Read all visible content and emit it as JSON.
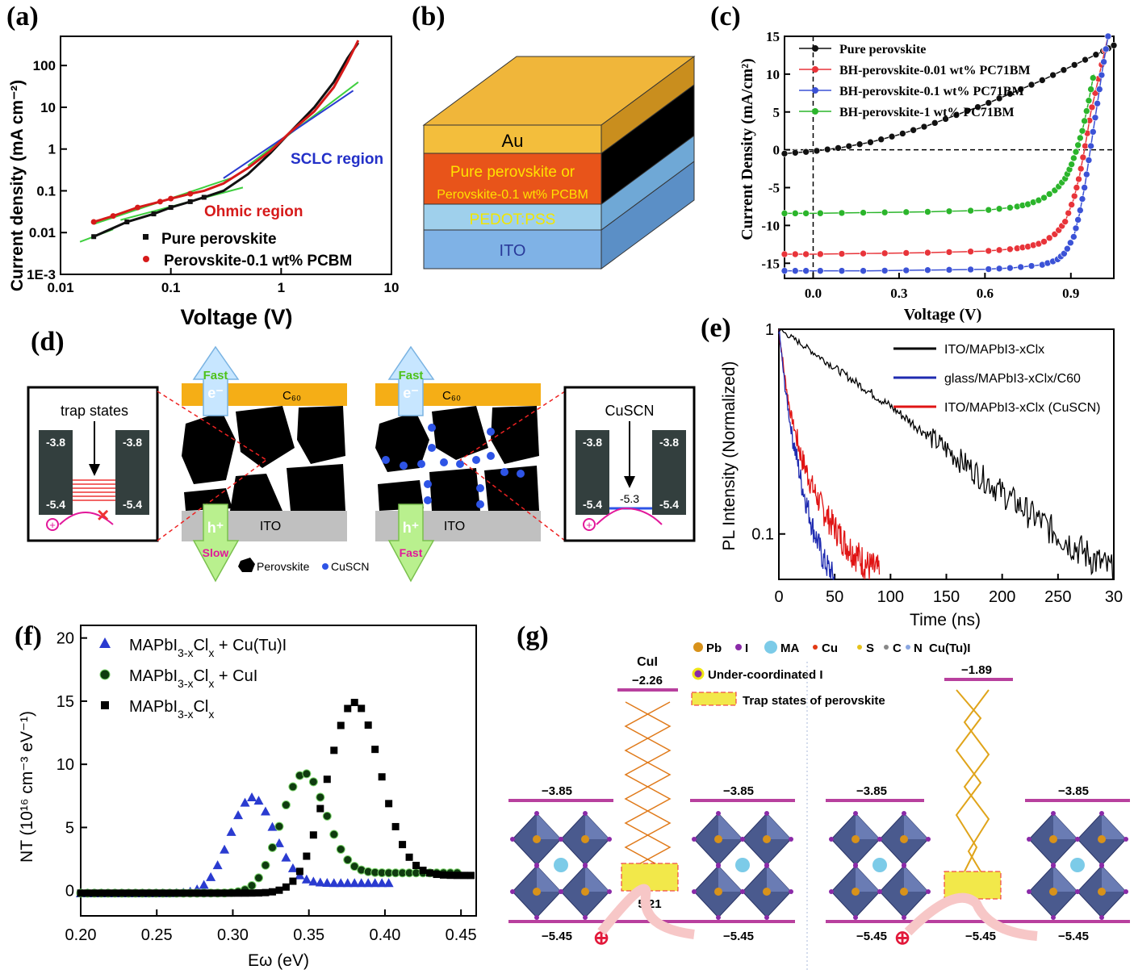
{
  "panel_labels": {
    "a": "(a)",
    "b": "(b)",
    "c": "(c)",
    "d": "(d)",
    "e": "(e)",
    "f": "(f)",
    "g": "(g)"
  },
  "chart_data": [
    {
      "id": "a",
      "type": "line",
      "x_scale": "log",
      "y_scale": "log",
      "xlabel": "Voltage (V)",
      "ylabel": "Current density (mA cm⁻²)",
      "xlim": [
        0.01,
        10
      ],
      "ylim": [
        0.001,
        500
      ],
      "x_ticks": [
        "0.01",
        "0.1",
        "1",
        "10"
      ],
      "y_ticks": [
        "1E-3",
        "0.01",
        "0.1",
        "1",
        "10",
        "100"
      ],
      "annotations": [
        "SCLC region",
        "Ohmic region",
        "Pure perovskite",
        "Perovskite-0.1 wt% PCBM"
      ],
      "series": [
        {
          "name": "Pure perovskite",
          "color": "#111111",
          "x": [
            0.02,
            0.04,
            0.07,
            0.1,
            0.15,
            0.2,
            0.3,
            0.5,
            0.8,
            1.2,
            2.0,
            3.0,
            4.0,
            5.0
          ],
          "y": [
            0.008,
            0.018,
            0.028,
            0.04,
            0.055,
            0.07,
            0.1,
            0.25,
            0.8,
            2.5,
            10,
            40,
            150,
            350
          ]
        },
        {
          "name": "Perovskite-0.1 wt% PCBM",
          "color": "#d61a1a",
          "x": [
            0.02,
            0.03,
            0.05,
            0.08,
            0.1,
            0.15,
            0.2,
            0.3,
            0.5,
            0.8,
            1.2,
            2.0,
            3.0,
            4.0,
            5.0
          ],
          "y": [
            0.018,
            0.025,
            0.04,
            0.055,
            0.065,
            0.085,
            0.1,
            0.15,
            0.35,
            0.9,
            2.5,
            8,
            30,
            120,
            400
          ]
        }
      ]
    },
    {
      "id": "c",
      "type": "line",
      "xlabel": "Voltage (V)",
      "ylabel": "Current Density (mA/cm²)",
      "xlim": [
        -0.1,
        1.05
      ],
      "ylim": [
        -17,
        15
      ],
      "x_ticks": [
        "0.0",
        "0.3",
        "0.6",
        "0.9"
      ],
      "y_ticks": [
        "15",
        "10",
        "5",
        "0",
        "-5",
        "-10",
        "-15"
      ],
      "series": [
        {
          "name": "Pure perovskite",
          "color": "#111111",
          "x": [
            -0.1,
            0.0,
            0.1,
            0.2,
            0.3,
            0.4,
            0.5,
            0.6,
            0.7,
            0.8,
            0.9,
            1.0,
            1.05
          ],
          "y": [
            -0.5,
            -0.2,
            0.3,
            1.0,
            2.0,
            3.2,
            4.6,
            6.0,
            7.6,
            9.2,
            11.0,
            12.8,
            13.8
          ]
        },
        {
          "name": "BH-perovskite-0.01 wt% PC71BM",
          "color": "#e8343a",
          "x": [
            -0.1,
            0.0,
            0.2,
            0.4,
            0.6,
            0.7,
            0.75,
            0.8,
            0.85,
            0.88,
            0.91,
            0.93,
            0.95,
            0.97,
            1.0,
            1.03
          ],
          "y": [
            -13.8,
            -13.8,
            -13.7,
            -13.6,
            -13.4,
            -13.1,
            -12.8,
            -12.3,
            -11.0,
            -9.5,
            -6.5,
            -3.5,
            0.5,
            5.0,
            10.0,
            15.0
          ]
        },
        {
          "name": "BH-perovskite-0.1 wt% PC71BM",
          "color": "#3b52d6",
          "x": [
            -0.1,
            0.0,
            0.2,
            0.4,
            0.6,
            0.7,
            0.8,
            0.85,
            0.88,
            0.91,
            0.93,
            0.95,
            0.97,
            0.99,
            1.01,
            1.03
          ],
          "y": [
            -16.0,
            -16.0,
            -16.0,
            -15.9,
            -15.8,
            -15.6,
            -15.2,
            -14.6,
            -13.6,
            -11.5,
            -8.5,
            -4.5,
            0.5,
            5.5,
            10.5,
            15.0
          ]
        },
        {
          "name": "BH-perovskite-1 wt% PC71BM",
          "color": "#2bb52b",
          "x": [
            -0.1,
            0.0,
            0.2,
            0.4,
            0.6,
            0.7,
            0.75,
            0.8,
            0.85,
            0.88,
            0.9,
            0.92,
            0.94,
            0.96,
            0.98
          ],
          "y": [
            -8.4,
            -8.4,
            -8.3,
            -8.2,
            -8.0,
            -7.6,
            -7.2,
            -6.5,
            -5.2,
            -3.8,
            -2.2,
            0.0,
            2.5,
            6.0,
            10.0
          ]
        }
      ]
    },
    {
      "id": "e",
      "type": "line",
      "y_scale": "log",
      "xlabel": "Time (ns)",
      "ylabel": "PL Intensity (Normalized)",
      "xlim": [
        0,
        300
      ],
      "ylim": [
        0.06,
        1
      ],
      "x_ticks": [
        "0",
        "50",
        "100",
        "150",
        "200",
        "250",
        "30"
      ],
      "y_ticks": [
        "1",
        "0.1"
      ],
      "series": [
        {
          "name": "ITO/MAPbI3-xClx",
          "color": "#000000",
          "x": [
            0,
            20,
            50,
            100,
            150,
            200,
            250,
            300
          ],
          "y": [
            1.0,
            0.85,
            0.65,
            0.42,
            0.26,
            0.16,
            0.1,
            0.065
          ]
        },
        {
          "name": "glass/MAPbI3-xClx/C60",
          "color": "#1f2bb0",
          "x": [
            0,
            5,
            10,
            20,
            30,
            40,
            50
          ],
          "y": [
            1.0,
            0.55,
            0.35,
            0.18,
            0.11,
            0.075,
            0.06
          ]
        },
        {
          "name": "ITO/MAPbI3-xClx (CuSCN)",
          "color": "#e01414",
          "x": [
            0,
            5,
            10,
            20,
            30,
            40,
            60,
            80,
            90
          ],
          "y": [
            1.0,
            0.6,
            0.4,
            0.24,
            0.17,
            0.13,
            0.09,
            0.07,
            0.065
          ]
        }
      ]
    },
    {
      "id": "f",
      "type": "scatter",
      "xlabel": "Eω (eV)",
      "ylabel": "NT (10¹⁶ cm⁻³ eV⁻¹)",
      "xlim": [
        0.2,
        0.46
      ],
      "ylim": [
        -2,
        21
      ],
      "x_ticks": [
        "0.20",
        "0.25",
        "0.30",
        "0.35",
        "0.40",
        "0.45"
      ],
      "y_ticks": [
        "0",
        "5",
        "10",
        "15",
        "20"
      ],
      "series": [
        {
          "name": "MAPbI3-xClx + Cu(Tu)I",
          "marker": "triangle",
          "color": "#2a3bd0",
          "peak_x": 0.313,
          "peak_y": 7.4,
          "width": 0.02,
          "x_start": 0.2,
          "x_end": 0.405,
          "baseline": 0.6
        },
        {
          "name": "MAPbI3-xClx + CuI",
          "marker": "circle",
          "color": "#0f3b0f",
          "peak_x": 0.347,
          "peak_y": 9.3,
          "width": 0.02,
          "x_start": 0.2,
          "x_end": 0.45,
          "baseline": 1.4
        },
        {
          "name": "MAPbI3-xClx",
          "marker": "square",
          "color": "#000000",
          "peak_x": 0.38,
          "peak_y": 14.9,
          "width": 0.024,
          "x_start": 0.2,
          "x_end": 0.46,
          "baseline": 1.2
        }
      ]
    }
  ],
  "panel_a": {
    "legend_black": "Pure perovskite",
    "legend_red": "Perovskite-0.1 wt% PCBM",
    "sclc": "SCLC region",
    "ohmic": "Ohmic region"
  },
  "panel_b": {
    "au": "Au",
    "perov1": "Pure perovskite or",
    "perov2": "Perovskite-0.1 wt% PCBM",
    "pedot": "PEDOT:PSS",
    "ito": "ITO"
  },
  "panel_c": {
    "legend": [
      "Pure perovskite",
      "BH-perovskite-0.01 wt% PC71BM",
      "BH-perovskite-0.1 wt% PC71BM",
      "BH-perovskite-1 wt% PC71BM"
    ]
  },
  "panel_d": {
    "trap_title": "trap states",
    "cuscn_title": "CuSCN",
    "lvl_top": "-3.8",
    "lvl_bot": "-5.4",
    "lvl_mid": "-5.3",
    "fast": "Fast",
    "slow": "Slow",
    "e": "e⁻",
    "h": "h⁺",
    "c60": "C₆₀",
    "ito": "ITO",
    "legend_perov": "Perovskite",
    "legend_cuscn": "CuSCN"
  },
  "panel_e": {
    "legend": [
      "ITO/MAPbI3-xClx",
      "glass/MAPbI3-xClx/C60",
      "ITO/MAPbI3-xClx (CuSCN)"
    ]
  },
  "panel_g": {
    "legend_atoms": [
      "Pb",
      "I",
      "MA",
      "Cu",
      "S",
      "C",
      "N"
    ],
    "cu_tu_i": "Cu(Tu)I",
    "under": "Under-coordinated I",
    "trap": "Trap states of perovskite",
    "cui": "CuI",
    "cui_level": "−2.26",
    "cutu_level": "−1.89",
    "top": "−3.85",
    "bot": "−5.45",
    "mid_left": "5.21",
    "mid_right": "−5.45"
  }
}
